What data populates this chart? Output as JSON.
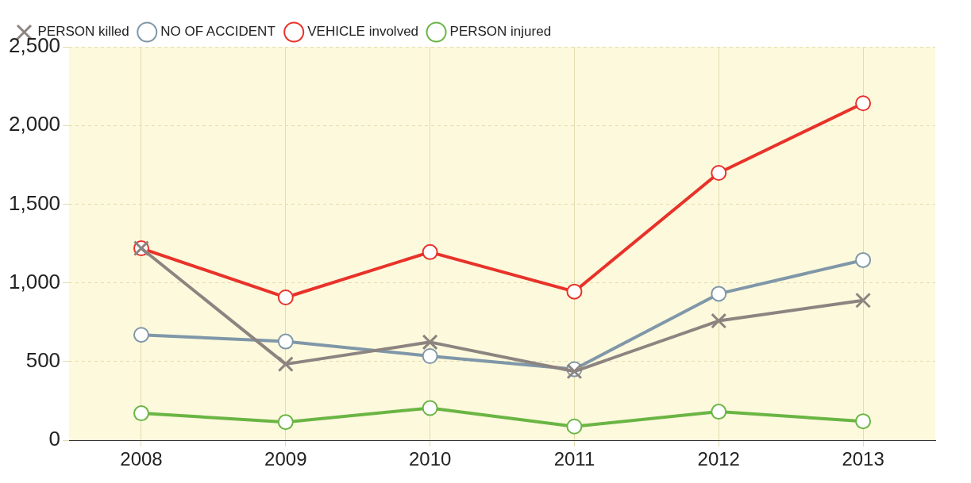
{
  "chart_data": {
    "type": "line",
    "categories": [
      "2008",
      "2009",
      "2010",
      "2011",
      "2012",
      "2013"
    ],
    "series": [
      {
        "name": "NO OF ACCIDENT",
        "color": "#7f97a8",
        "marker": "circle",
        "values": [
          670,
          628,
          535,
          452,
          931,
          1145
        ]
      },
      {
        "name": "VEHICLE involved",
        "color": "#e8322a",
        "marker": "circle",
        "values": [
          1220,
          908,
          1196,
          945,
          1699,
          2141
        ]
      },
      {
        "name": "PERSON killed",
        "color": "#8c8480",
        "marker": "cross",
        "values": [
          1220,
          484,
          624,
          438,
          759,
          889
        ]
      },
      {
        "name": "PERSON injured",
        "color": "#6ab544",
        "marker": "circle",
        "values": [
          172,
          116,
          205,
          88,
          182,
          121
        ]
      }
    ],
    "ylim": [
      0,
      2500
    ],
    "yticks": [
      0,
      500,
      {
        "value": 1000,
        "label": "1,000"
      },
      {
        "value": 1500,
        "label": "1,500"
      },
      {
        "value": 2000,
        "label": "2,000"
      },
      {
        "value": 2500,
        "label": "2,500"
      }
    ],
    "grid": true,
    "legend": "top left",
    "line_style": "solid"
  }
}
